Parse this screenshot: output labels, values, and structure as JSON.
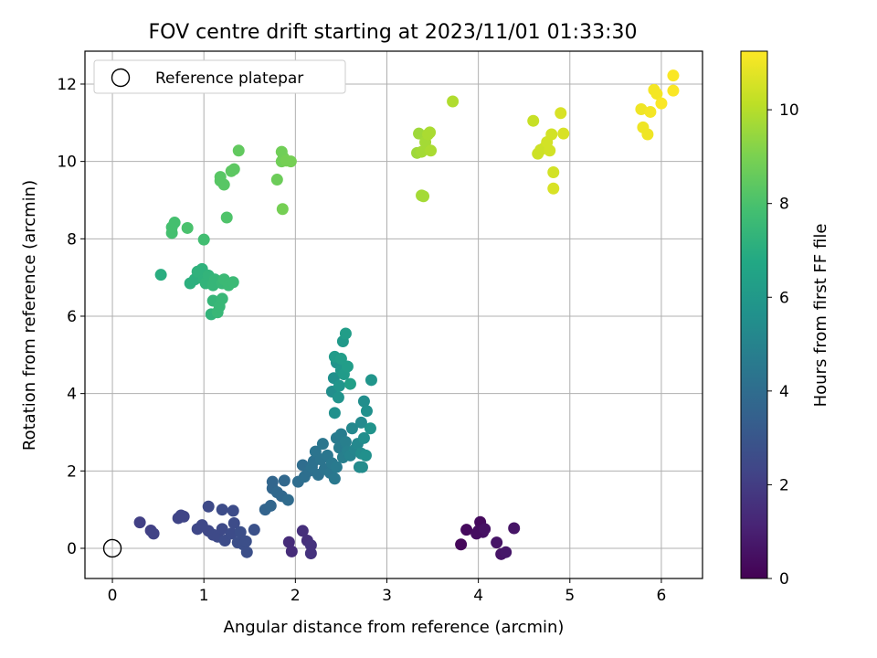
{
  "chart_data": {
    "type": "scatter",
    "title": "FOV centre drift starting at 2023/11/01 01:33:30",
    "xlabel": "Angular distance from reference (arcmin)",
    "ylabel": "Rotation from reference (arcmin)",
    "xlim": [
      -0.3,
      6.45
    ],
    "ylim": [
      -0.78,
      12.85
    ],
    "xticks": [
      0,
      1,
      2,
      3,
      4,
      5,
      6
    ],
    "yticks": [
      0,
      2,
      4,
      6,
      8,
      10,
      12
    ],
    "grid": true,
    "legend": {
      "position": "upper-left",
      "entries": [
        "Reference platepar"
      ]
    },
    "reference_point": {
      "x": 0,
      "y": 0
    },
    "colorbar": {
      "label": "Hours from first FF file",
      "range": [
        0,
        11.25
      ],
      "ticks": [
        0,
        2,
        4,
        6,
        8,
        10
      ],
      "colormap": "viridis"
    },
    "points": [
      {
        "x": 3.81,
        "y": 0.1,
        "c": 0.2
      },
      {
        "x": 3.87,
        "y": 0.48,
        "c": 0.3
      },
      {
        "x": 3.98,
        "y": 0.38,
        "c": 0.4
      },
      {
        "x": 4.02,
        "y": 0.68,
        "c": 0.3
      },
      {
        "x": 4.05,
        "y": 0.42,
        "c": 0.5
      },
      {
        "x": 4.0,
        "y": 0.45,
        "c": 0.4
      },
      {
        "x": 4.07,
        "y": 0.5,
        "c": 0.5
      },
      {
        "x": 4.2,
        "y": 0.15,
        "c": 0.6
      },
      {
        "x": 4.25,
        "y": -0.15,
        "c": 0.6
      },
      {
        "x": 4.3,
        "y": -0.1,
        "c": 0.7
      },
      {
        "x": 4.39,
        "y": 0.52,
        "c": 0.6
      },
      {
        "x": 1.93,
        "y": 0.16,
        "c": 1.4
      },
      {
        "x": 1.96,
        "y": -0.08,
        "c": 1.4
      },
      {
        "x": 2.08,
        "y": 0.45,
        "c": 1.5
      },
      {
        "x": 2.13,
        "y": 0.2,
        "c": 1.5
      },
      {
        "x": 2.17,
        "y": 0.08,
        "c": 1.6
      },
      {
        "x": 2.17,
        "y": -0.13,
        "c": 1.6
      },
      {
        "x": 0.3,
        "y": 0.67,
        "c": 2.1
      },
      {
        "x": 0.42,
        "y": 0.46,
        "c": 2.1
      },
      {
        "x": 0.45,
        "y": 0.38,
        "c": 2.2
      },
      {
        "x": 0.72,
        "y": 0.78,
        "c": 2.3
      },
      {
        "x": 0.78,
        "y": 0.82,
        "c": 2.3
      },
      {
        "x": 0.75,
        "y": 0.85,
        "c": 2.3
      },
      {
        "x": 0.93,
        "y": 0.5,
        "c": 2.4
      },
      {
        "x": 0.98,
        "y": 0.6,
        "c": 2.4
      },
      {
        "x": 1.05,
        "y": 1.08,
        "c": 2.5
      },
      {
        "x": 1.05,
        "y": 0.45,
        "c": 2.4
      },
      {
        "x": 1.1,
        "y": 0.35,
        "c": 2.5
      },
      {
        "x": 1.15,
        "y": 0.3,
        "c": 2.5
      },
      {
        "x": 1.2,
        "y": 0.5,
        "c": 2.5
      },
      {
        "x": 1.2,
        "y": 1.0,
        "c": 2.6
      },
      {
        "x": 1.23,
        "y": 0.2,
        "c": 2.6
      },
      {
        "x": 1.3,
        "y": 0.38,
        "c": 2.6
      },
      {
        "x": 1.32,
        "y": 0.97,
        "c": 2.6
      },
      {
        "x": 1.33,
        "y": 0.65,
        "c": 2.6
      },
      {
        "x": 1.37,
        "y": 0.15,
        "c": 2.7
      },
      {
        "x": 1.4,
        "y": 0.42,
        "c": 2.7
      },
      {
        "x": 1.43,
        "y": 0.1,
        "c": 2.7
      },
      {
        "x": 1.46,
        "y": 0.18,
        "c": 2.7
      },
      {
        "x": 1.47,
        "y": -0.1,
        "c": 2.7
      },
      {
        "x": 1.55,
        "y": 0.48,
        "c": 2.8
      },
      {
        "x": 1.67,
        "y": 1.0,
        "c": 3.6
      },
      {
        "x": 1.73,
        "y": 1.1,
        "c": 3.7
      },
      {
        "x": 1.75,
        "y": 1.55,
        "c": 3.7
      },
      {
        "x": 1.75,
        "y": 1.72,
        "c": 3.7
      },
      {
        "x": 1.8,
        "y": 1.45,
        "c": 3.8
      },
      {
        "x": 1.85,
        "y": 1.35,
        "c": 3.8
      },
      {
        "x": 1.88,
        "y": 1.75,
        "c": 3.8
      },
      {
        "x": 1.92,
        "y": 1.25,
        "c": 3.9
      },
      {
        "x": 2.03,
        "y": 1.72,
        "c": 4.0
      },
      {
        "x": 2.08,
        "y": 2.15,
        "c": 4.0
      },
      {
        "x": 2.1,
        "y": 1.85,
        "c": 4.1
      },
      {
        "x": 2.15,
        "y": 2.0,
        "c": 4.1
      },
      {
        "x": 2.18,
        "y": 2.1,
        "c": 4.2
      },
      {
        "x": 2.2,
        "y": 2.25,
        "c": 4.2
      },
      {
        "x": 2.22,
        "y": 2.5,
        "c": 4.3
      },
      {
        "x": 2.25,
        "y": 1.9,
        "c": 4.2
      },
      {
        "x": 2.28,
        "y": 2.3,
        "c": 4.3
      },
      {
        "x": 2.3,
        "y": 2.7,
        "c": 4.4
      },
      {
        "x": 2.32,
        "y": 2.05,
        "c": 4.3
      },
      {
        "x": 2.35,
        "y": 2.4,
        "c": 4.4
      },
      {
        "x": 2.38,
        "y": 1.95,
        "c": 4.4
      },
      {
        "x": 2.4,
        "y": 2.2,
        "c": 4.5
      },
      {
        "x": 2.43,
        "y": 1.8,
        "c": 4.5
      },
      {
        "x": 2.45,
        "y": 2.85,
        "c": 4.6
      },
      {
        "x": 2.45,
        "y": 2.1,
        "c": 4.6
      },
      {
        "x": 2.48,
        "y": 2.6,
        "c": 4.7
      },
      {
        "x": 2.5,
        "y": 2.95,
        "c": 4.7
      },
      {
        "x": 2.52,
        "y": 2.35,
        "c": 4.8
      },
      {
        "x": 2.55,
        "y": 2.75,
        "c": 4.8
      },
      {
        "x": 2.57,
        "y": 2.5,
        "c": 4.9
      },
      {
        "x": 2.6,
        "y": 2.4,
        "c": 5.0
      },
      {
        "x": 2.62,
        "y": 3.1,
        "c": 5.2
      },
      {
        "x": 2.65,
        "y": 2.55,
        "c": 5.1
      },
      {
        "x": 2.68,
        "y": 2.7,
        "c": 5.2
      },
      {
        "x": 2.7,
        "y": 2.1,
        "c": 5.3
      },
      {
        "x": 2.72,
        "y": 3.25,
        "c": 5.3
      },
      {
        "x": 2.72,
        "y": 2.45,
        "c": 5.4
      },
      {
        "x": 2.73,
        "y": 2.1,
        "c": 5.4
      },
      {
        "x": 2.75,
        "y": 2.85,
        "c": 5.5
      },
      {
        "x": 2.75,
        "y": 3.8,
        "c": 5.5
      },
      {
        "x": 2.77,
        "y": 2.4,
        "c": 5.6
      },
      {
        "x": 2.78,
        "y": 3.55,
        "c": 5.6
      },
      {
        "x": 2.82,
        "y": 3.1,
        "c": 5.7
      },
      {
        "x": 2.83,
        "y": 4.35,
        "c": 5.8
      },
      {
        "x": 2.4,
        "y": 4.05,
        "c": 5.5
      },
      {
        "x": 2.42,
        "y": 4.4,
        "c": 5.6
      },
      {
        "x": 2.43,
        "y": 3.5,
        "c": 5.6
      },
      {
        "x": 2.45,
        "y": 4.8,
        "c": 5.7
      },
      {
        "x": 2.47,
        "y": 3.9,
        "c": 5.7
      },
      {
        "x": 2.48,
        "y": 4.2,
        "c": 5.8
      },
      {
        "x": 2.5,
        "y": 4.6,
        "c": 5.9
      },
      {
        "x": 2.52,
        "y": 5.35,
        "c": 6.0
      },
      {
        "x": 2.53,
        "y": 4.5,
        "c": 6.1
      },
      {
        "x": 2.55,
        "y": 5.55,
        "c": 6.2
      },
      {
        "x": 2.57,
        "y": 4.7,
        "c": 6.2
      },
      {
        "x": 2.6,
        "y": 4.25,
        "c": 6.3
      },
      {
        "x": 2.43,
        "y": 4.95,
        "c": 6.1
      },
      {
        "x": 2.5,
        "y": 4.9,
        "c": 6.2
      },
      {
        "x": 0.53,
        "y": 7.07,
        "c": 7.0
      },
      {
        "x": 0.85,
        "y": 6.85,
        "c": 7.1
      },
      {
        "x": 0.9,
        "y": 6.95,
        "c": 7.1
      },
      {
        "x": 0.93,
        "y": 7.15,
        "c": 7.2
      },
      {
        "x": 0.98,
        "y": 7.22,
        "c": 7.2
      },
      {
        "x": 1.0,
        "y": 6.95,
        "c": 7.2
      },
      {
        "x": 1.02,
        "y": 6.85,
        "c": 7.3
      },
      {
        "x": 1.05,
        "y": 7.05,
        "c": 7.3
      },
      {
        "x": 1.08,
        "y": 6.05,
        "c": 7.3
      },
      {
        "x": 1.1,
        "y": 6.4,
        "c": 7.4
      },
      {
        "x": 1.1,
        "y": 6.8,
        "c": 7.4
      },
      {
        "x": 1.12,
        "y": 6.95,
        "c": 7.4
      },
      {
        "x": 1.15,
        "y": 6.1,
        "c": 7.5
      },
      {
        "x": 1.17,
        "y": 6.25,
        "c": 7.5
      },
      {
        "x": 1.2,
        "y": 6.45,
        "c": 7.5
      },
      {
        "x": 1.2,
        "y": 6.85,
        "c": 7.5
      },
      {
        "x": 1.22,
        "y": 6.95,
        "c": 7.6
      },
      {
        "x": 1.27,
        "y": 6.8,
        "c": 7.6
      },
      {
        "x": 1.32,
        "y": 6.88,
        "c": 7.6
      },
      {
        "x": 1.0,
        "y": 7.98,
        "c": 7.8
      },
      {
        "x": 0.65,
        "y": 8.15,
        "c": 7.9
      },
      {
        "x": 0.65,
        "y": 8.3,
        "c": 7.9
      },
      {
        "x": 0.68,
        "y": 8.42,
        "c": 7.9
      },
      {
        "x": 0.82,
        "y": 8.28,
        "c": 8.0
      },
      {
        "x": 1.25,
        "y": 8.55,
        "c": 8.1
      },
      {
        "x": 1.18,
        "y": 9.5,
        "c": 8.3
      },
      {
        "x": 1.18,
        "y": 9.6,
        "c": 8.3
      },
      {
        "x": 1.22,
        "y": 9.4,
        "c": 8.3
      },
      {
        "x": 1.3,
        "y": 9.75,
        "c": 8.4
      },
      {
        "x": 1.33,
        "y": 9.8,
        "c": 8.4
      },
      {
        "x": 1.38,
        "y": 10.28,
        "c": 8.5
      },
      {
        "x": 1.8,
        "y": 9.53,
        "c": 8.7
      },
      {
        "x": 1.85,
        "y": 10.0,
        "c": 8.8
      },
      {
        "x": 1.85,
        "y": 10.25,
        "c": 8.8
      },
      {
        "x": 1.87,
        "y": 10.1,
        "c": 8.8
      },
      {
        "x": 1.9,
        "y": 10.02,
        "c": 8.9
      },
      {
        "x": 1.95,
        "y": 10.0,
        "c": 8.9
      },
      {
        "x": 1.86,
        "y": 8.77,
        "c": 8.9
      },
      {
        "x": 3.33,
        "y": 10.22,
        "c": 9.6
      },
      {
        "x": 3.35,
        "y": 10.72,
        "c": 9.6
      },
      {
        "x": 3.38,
        "y": 10.25,
        "c": 9.7
      },
      {
        "x": 3.4,
        "y": 9.1,
        "c": 9.7
      },
      {
        "x": 3.42,
        "y": 10.5,
        "c": 9.7
      },
      {
        "x": 3.45,
        "y": 10.7,
        "c": 9.8
      },
      {
        "x": 3.47,
        "y": 10.75,
        "c": 9.8
      },
      {
        "x": 3.48,
        "y": 10.28,
        "c": 9.8
      },
      {
        "x": 3.72,
        "y": 11.55,
        "c": 9.9
      },
      {
        "x": 3.38,
        "y": 9.12,
        "c": 9.7
      },
      {
        "x": 4.6,
        "y": 11.05,
        "c": 10.3
      },
      {
        "x": 4.65,
        "y": 10.2,
        "c": 10.4
      },
      {
        "x": 4.68,
        "y": 10.3,
        "c": 10.4
      },
      {
        "x": 4.72,
        "y": 10.35,
        "c": 10.4
      },
      {
        "x": 4.75,
        "y": 10.5,
        "c": 10.5
      },
      {
        "x": 4.78,
        "y": 10.28,
        "c": 10.5
      },
      {
        "x": 4.8,
        "y": 10.7,
        "c": 10.5
      },
      {
        "x": 4.82,
        "y": 9.72,
        "c": 10.5
      },
      {
        "x": 4.82,
        "y": 9.3,
        "c": 10.6
      },
      {
        "x": 4.9,
        "y": 11.25,
        "c": 10.6
      },
      {
        "x": 4.93,
        "y": 10.72,
        "c": 10.6
      },
      {
        "x": 5.78,
        "y": 11.35,
        "c": 11.0
      },
      {
        "x": 5.8,
        "y": 10.88,
        "c": 11.0
      },
      {
        "x": 5.85,
        "y": 10.7,
        "c": 11.0
      },
      {
        "x": 5.88,
        "y": 11.28,
        "c": 11.1
      },
      {
        "x": 5.92,
        "y": 11.85,
        "c": 11.1
      },
      {
        "x": 5.95,
        "y": 11.75,
        "c": 11.1
      },
      {
        "x": 6.0,
        "y": 11.5,
        "c": 11.2
      },
      {
        "x": 6.13,
        "y": 11.83,
        "c": 11.2
      },
      {
        "x": 6.13,
        "y": 12.22,
        "c": 11.2
      }
    ]
  }
}
